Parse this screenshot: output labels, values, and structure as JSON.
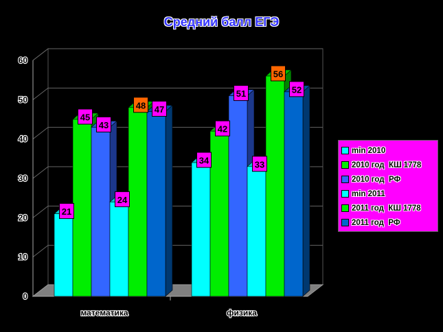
{
  "chart_data": {
    "type": "bar",
    "title": "Средний балл ЕГЭ",
    "categories": [
      "математика",
      "физика"
    ],
    "ylim": [
      0,
      60
    ],
    "yticks": [
      0,
      10,
      20,
      30,
      40,
      50,
      60
    ],
    "legend_position": "right",
    "grid": true,
    "series": [
      {
        "name": "min 2010",
        "color": "#00ffff",
        "values": [
          21,
          34
        ]
      },
      {
        "name": "2010 год  КШ 1778",
        "color": "#00ee00",
        "values": [
          45,
          42
        ]
      },
      {
        "name": "2010 год  РФ",
        "color": "#3366ff",
        "values": [
          43,
          51
        ]
      },
      {
        "name": "min 2011",
        "color": "#00ffff",
        "values": [
          24,
          33
        ]
      },
      {
        "name": "2011 год  КШ 1778",
        "color": "#00ee00",
        "values": [
          48,
          56
        ]
      },
      {
        "name": "2011 год  РФ",
        "color": "#0066cc",
        "values": [
          47,
          52
        ]
      }
    ],
    "label_highlight": [
      [
        false,
        false,
        false,
        false,
        true,
        false
      ],
      [
        false,
        false,
        false,
        false,
        true,
        false
      ]
    ]
  }
}
